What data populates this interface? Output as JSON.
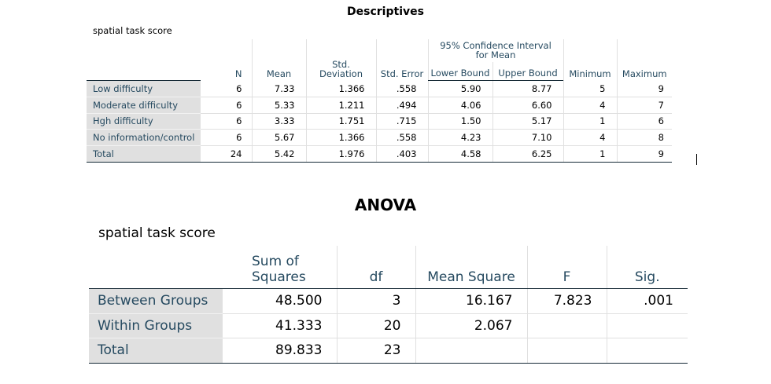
{
  "descriptives": {
    "title": "Descriptives",
    "subtitle": "spatial task score",
    "headers": {
      "n": "N",
      "mean": "Mean",
      "std_deviation": "Std. Deviation",
      "std_error": "Std. Error",
      "ci_group": "95% Confidence Interval for Mean",
      "lower_bound": "Lower Bound",
      "upper_bound": "Upper Bound",
      "minimum": "Minimum",
      "maximum": "Maximum"
    },
    "rows": [
      {
        "label": "Low difficulty",
        "n": "6",
        "mean": "7.33",
        "sd": "1.366",
        "se": ".558",
        "lower": "5.90",
        "upper": "8.77",
        "min": "5",
        "max": "9"
      },
      {
        "label": "Moderate difficulty",
        "n": "6",
        "mean": "5.33",
        "sd": "1.211",
        "se": ".494",
        "lower": "4.06",
        "upper": "6.60",
        "min": "4",
        "max": "7"
      },
      {
        "label": "Hgh difficulty",
        "n": "6",
        "mean": "3.33",
        "sd": "1.751",
        "se": ".715",
        "lower": "1.50",
        "upper": "5.17",
        "min": "1",
        "max": "6"
      },
      {
        "label": "No information/control",
        "n": "6",
        "mean": "5.67",
        "sd": "1.366",
        "se": ".558",
        "lower": "4.23",
        "upper": "7.10",
        "min": "4",
        "max": "8"
      },
      {
        "label": "Total",
        "n": "24",
        "mean": "5.42",
        "sd": "1.976",
        "se": ".403",
        "lower": "4.58",
        "upper": "6.25",
        "min": "1",
        "max": "9"
      }
    ]
  },
  "anova": {
    "title": "ANOVA",
    "subtitle": "spatial task score",
    "headers": {
      "sum_of_squares": "Sum of Squares",
      "df": "df",
      "mean_square": "Mean Square",
      "f": "F",
      "sig": "Sig."
    },
    "rows": [
      {
        "label": "Between Groups",
        "ss": "48.500",
        "df": "3",
        "ms": "16.167",
        "f": "7.823",
        "sig": ".001"
      },
      {
        "label": "Within Groups",
        "ss": "41.333",
        "df": "20",
        "ms": "2.067",
        "f": "",
        "sig": ""
      },
      {
        "label": "Total",
        "ss": "89.833",
        "df": "23",
        "ms": "",
        "f": "",
        "sig": ""
      }
    ]
  }
}
